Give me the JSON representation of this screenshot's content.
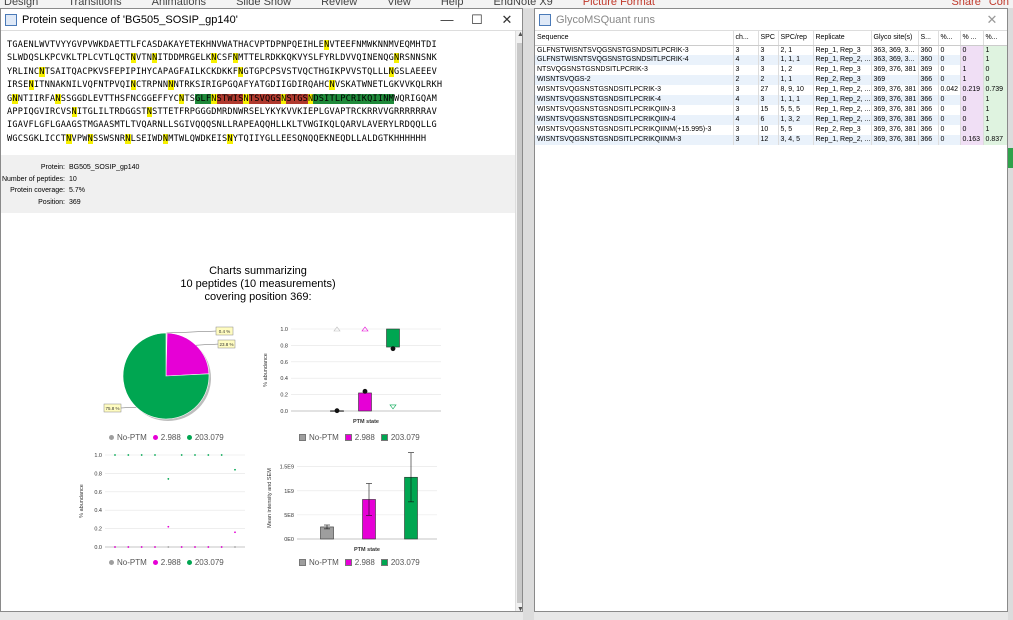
{
  "ribbon": {
    "tabs": [
      "Design",
      "Transitions",
      "Animations",
      "Slide Show",
      "Review",
      "View",
      "Help",
      "EndNote X9",
      "Picture Format"
    ],
    "share": "Share",
    "comments": "Con"
  },
  "protein_window": {
    "title": "Protein sequence of 'BG505_SOSIP_gp140'",
    "sequence_lines": [
      [
        [
          "TGAENLWVTVYYGVPVWKDAETTLFCASDAKAYETEKHNVWATHACVPTDPNPQEIHLE",
          ""
        ],
        [
          "N",
          "y"
        ],
        [
          "VTEEFNMWKNNMVEQMHTDI",
          ""
        ]
      ],
      [
        [
          "SLWDQSLKPCVKLTPLCVTLQCT",
          ""
        ],
        [
          "N",
          "y"
        ],
        [
          "VTN",
          ""
        ],
        [
          "N",
          "y"
        ],
        [
          "ITDDMRGELK",
          ""
        ],
        [
          "N",
          "y"
        ],
        [
          "CSF",
          ""
        ],
        [
          "N",
          "y"
        ],
        [
          "MTTELRDKKQKVYSLFYRLDVVQINENQG",
          ""
        ],
        [
          "N",
          "y"
        ],
        [
          "RSNNSNK",
          ""
        ]
      ],
      [
        [
          "YRLINC",
          ""
        ],
        [
          "N",
          "y"
        ],
        [
          "TSAITQACPKVSFEPIPIHYCAPAGFAILKCKDKKF",
          ""
        ],
        [
          "N",
          "y"
        ],
        [
          "GTGPCPSVSTVQCTHGIKPVVSTQLLL",
          ""
        ],
        [
          "N",
          "y"
        ],
        [
          "GSLAEEEV",
          ""
        ]
      ],
      [
        [
          "IRSE",
          ""
        ],
        [
          "N",
          "y"
        ],
        [
          "ITNNAKNILVQFNTPVQI",
          ""
        ],
        [
          "N",
          "y"
        ],
        [
          "CTRPNN",
          ""
        ],
        [
          "N",
          "y"
        ],
        [
          "NTRKSIRIGPGQAFYATGDIIGDIRQAHC",
          ""
        ],
        [
          "N",
          "y"
        ],
        [
          "VSKATWNETLGKVVKQLRKH",
          ""
        ]
      ],
      [
        [
          "G",
          ""
        ],
        [
          "N",
          "y"
        ],
        [
          "NTIIRFA",
          ""
        ],
        [
          "N",
          "y"
        ],
        [
          "SSGGDLEVTTHSFNCGGEFFYC",
          ""
        ],
        [
          "N",
          "y"
        ],
        [
          "TS",
          ""
        ],
        [
          "GLF",
          "g"
        ],
        [
          "N",
          "y"
        ],
        [
          "STWIS",
          "r"
        ],
        [
          "N",
          "y"
        ],
        [
          "TSVQGS",
          "r"
        ],
        [
          "N",
          "y"
        ],
        [
          "STGS",
          "r"
        ],
        [
          "N",
          "y"
        ],
        [
          "DSITLPCRIKQIINM",
          "g"
        ],
        [
          "WQRIGQAM",
          ""
        ]
      ],
      [
        [
          "APPIQGVIRCVS",
          ""
        ],
        [
          "N",
          "y"
        ],
        [
          "ITGLILTRDGGST",
          ""
        ],
        [
          "N",
          "y"
        ],
        [
          "STTETFRPGGGDMRDNWRSELYKYKVVKIEPLGVAPTRCKRRVVGRRRRRRAV",
          ""
        ]
      ],
      [
        [
          "IGAVFLGFLGAAGSTMGAASMTLTVQARNLLSGIVQQQSNLLRAPEAQQHLLKLTVWGIKQLQARVLAVERYLRDQQLLG",
          ""
        ]
      ],
      [
        [
          "WGCSGKLICCT",
          ""
        ],
        [
          "N",
          "y"
        ],
        [
          "VPW",
          ""
        ],
        [
          "N",
          "y"
        ],
        [
          "SSWSNR",
          ""
        ],
        [
          "N",
          "y"
        ],
        [
          "LSEIWD",
          ""
        ],
        [
          "N",
          "y"
        ],
        [
          "MTWLQWDKEIS",
          ""
        ],
        [
          "N",
          "y"
        ],
        [
          "YTQIIYGLLEESQNQQEKNEQDLLALDGTKHHHHHH",
          ""
        ]
      ]
    ],
    "info": [
      {
        "label": "Protein:",
        "value": "BG505_SOSIP_gp140"
      },
      {
        "label": "Number of peptides:",
        "value": "10"
      },
      {
        "label": "Protein coverage:",
        "value": "5.7%"
      },
      {
        "label": "Position:",
        "value": "369"
      }
    ],
    "charts_title": [
      "Charts summarizing",
      "10 peptides (10 measurements)",
      "covering position 369:"
    ]
  },
  "legend": {
    "items": [
      {
        "label": "No-PTM",
        "color": "#9e9e9e"
      },
      {
        "label": "2.988",
        "color": "#e600d6"
      },
      {
        "label": "203.079",
        "color": "#00a651"
      }
    ]
  },
  "chart_data": [
    {
      "type": "pie",
      "categories": [
        "No-PTM",
        "2.988",
        "203.079"
      ],
      "values": [
        0.4,
        23.8,
        75.8
      ],
      "labels": [
        "0.4 %",
        "23.8 %",
        "75.8 %"
      ]
    },
    {
      "type": "bar",
      "categories": [
        "No-PTM",
        "2.988",
        "203.079"
      ],
      "ylabel": "% abundance",
      "xlabel": "PTM state",
      "ylim": [
        0,
        1
      ],
      "yticks": [
        "0.0",
        "0.2",
        "0.4",
        "0.6",
        "0.8",
        "1.0"
      ],
      "bars": [
        {
          "low": 0,
          "high": 0.004,
          "mean": 0.004
        },
        {
          "low": 0,
          "high": 0.22,
          "mean": 0.24
        },
        {
          "low": 0.78,
          "high": 1.0,
          "mean": 0.76
        }
      ],
      "max_markers": [
        1.0,
        1.0,
        1.0
      ],
      "min_markers": [
        null,
        null,
        0.05
      ]
    },
    {
      "type": "scatter",
      "ylabel": "% abundance",
      "ylim": [
        0,
        1
      ],
      "yticks": [
        "0.0",
        "0.2",
        "0.4",
        "0.6",
        "0.8",
        "1.0"
      ],
      "series": [
        {
          "name": "No-PTM",
          "values": [
            0,
            0,
            0,
            0,
            0,
            0,
            0,
            0,
            0,
            0
          ]
        },
        {
          "name": "2.988",
          "values": [
            0,
            0,
            0,
            0,
            0.22,
            0,
            0,
            0,
            0,
            0.16
          ]
        },
        {
          "name": "203.079",
          "values": [
            1,
            1,
            1,
            1,
            0.74,
            1,
            1,
            1,
            1,
            0.84
          ]
        }
      ]
    },
    {
      "type": "bar",
      "categories": [
        "No-PTM",
        "2.988",
        "203.079"
      ],
      "ylabel": "Mean intensity and SEM",
      "xlabel": "PTM state",
      "ylim": [
        0,
        1700000000.0
      ],
      "yticks": [
        "0E0",
        "5E8",
        "1E9",
        "1.5E9"
      ],
      "ytick_values": [
        0,
        500000000.0,
        1000000000.0,
        1500000000.0
      ],
      "values": [
        250000000.0,
        820000000.0,
        1280000000.0
      ],
      "sem": [
        40000000.0,
        330000000.0,
        510000000.0
      ]
    }
  ],
  "glyco_window": {
    "title": "GlycoMSQuant runs",
    "columns": [
      "Sequence",
      "ch...",
      "SPC",
      "SPC/rep",
      "Replicate",
      "Glyco site(s)",
      "S...",
      "%...",
      "% ...",
      "%..."
    ],
    "rows": [
      [
        "GLFNSTWISNTSVQGSNSTGSNDSITLPCRIK-3",
        "3",
        "3",
        "2, 1",
        "Rep_1, Rep_3",
        "363, 369, 3...",
        "360",
        "0",
        "0",
        "1"
      ],
      [
        "GLFNSTWISNTSVQGSNSTGSNDSITLPCRIK-4",
        "4",
        "3",
        "1, 1, 1",
        "Rep_1, Rep_2, ...",
        "363, 369, 3...",
        "360",
        "0",
        "0",
        "1"
      ],
      [
        "NTSVQGSNSTGSNDSITLPCRIK-3",
        "3",
        "3",
        "1, 2",
        "Rep_1, Rep_3",
        "369, 376, 381",
        "369",
        "0",
        "1",
        "0"
      ],
      [
        "WISNTSVQGS-2",
        "2",
        "2",
        "1, 1",
        "Rep_2, Rep_3",
        "369",
        "366",
        "0",
        "1",
        "0"
      ],
      [
        "WISNTSVQGSNSTGSNDSITLPCRIK-3",
        "3",
        "27",
        "8, 9, 10",
        "Rep_1, Rep_2, ...",
        "369, 376, 381",
        "366",
        "0.042",
        "0.219",
        "0.739"
      ],
      [
        "WISNTSVQGSNSTGSNDSITLPCRIK-4",
        "4",
        "3",
        "1, 1, 1",
        "Rep_1, Rep_2, ...",
        "369, 376, 381",
        "366",
        "0",
        "0",
        "1"
      ],
      [
        "WISNTSVQGSNSTGSNDSITLPCRIKQIIN-3",
        "3",
        "15",
        "5, 5, 5",
        "Rep_1, Rep_2, ...",
        "369, 376, 381",
        "366",
        "0",
        "0",
        "1"
      ],
      [
        "WISNTSVQGSNSTGSNDSITLPCRIKQIIN-4",
        "4",
        "6",
        "1, 3, 2",
        "Rep_1, Rep_2, ...",
        "369, 376, 381",
        "366",
        "0",
        "0",
        "1"
      ],
      [
        "WISNTSVQGSNSTGSNDSITLPCRIKQIINM(+15.995)-3",
        "3",
        "10",
        "5, 5",
        "Rep_2, Rep_3",
        "369, 376, 381",
        "366",
        "0",
        "0",
        "1"
      ],
      [
        "WISNTSVQGSNSTGSNDSITLPCRIKQIINM-3",
        "3",
        "12",
        "3, 4, 5",
        "Rep_1, Rep_2, ...",
        "369, 376, 381",
        "366",
        "0",
        "0.163",
        "0.837"
      ]
    ]
  }
}
